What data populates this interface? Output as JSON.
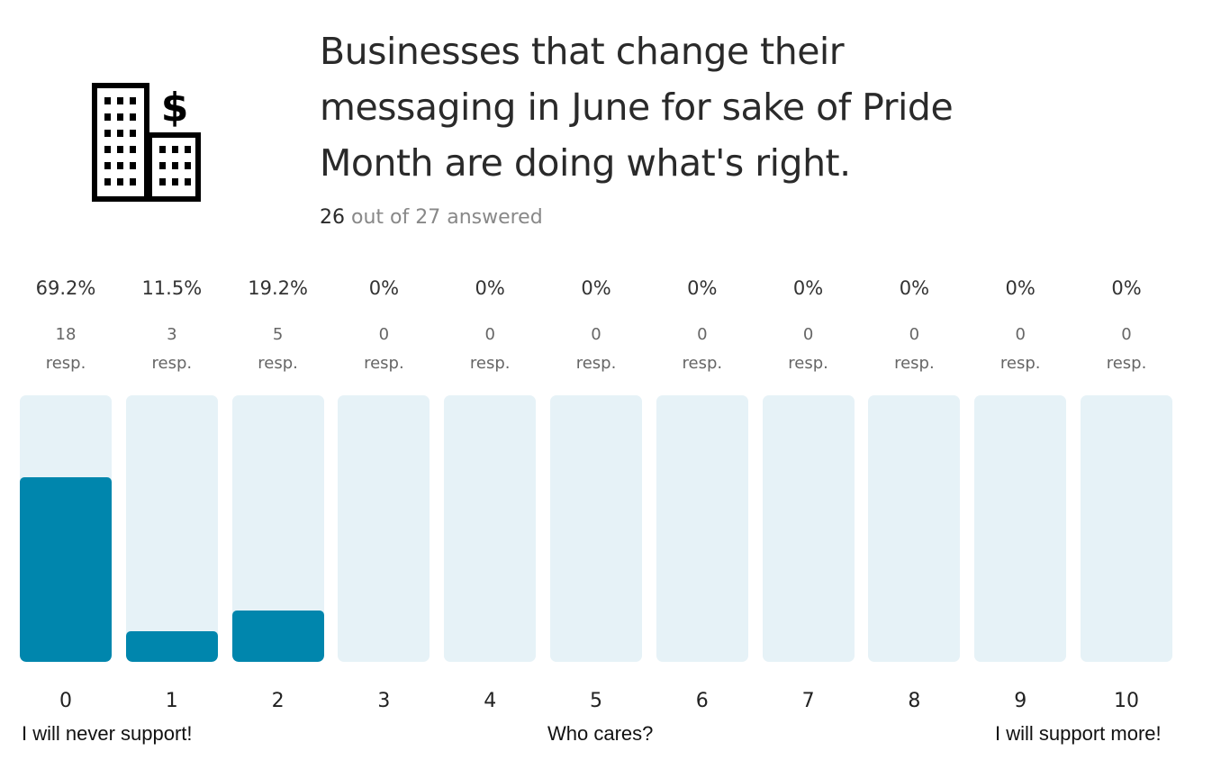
{
  "question": {
    "title": "Businesses that change their messaging in June for sake of Pride Month are doing what's right.",
    "answered_count": "26",
    "answered_suffix": "out of 27 answered",
    "icon": "office-building-dollar-icon"
  },
  "colors": {
    "fill": "#0086ad",
    "track": "#e6f2f7"
  },
  "chart_data": {
    "type": "bar",
    "categories": [
      "0",
      "1",
      "2",
      "3",
      "4",
      "5",
      "6",
      "7",
      "8",
      "9",
      "10"
    ],
    "values": [
      18,
      3,
      5,
      0,
      0,
      0,
      0,
      0,
      0,
      0,
      0
    ],
    "percentages": [
      "69.2%",
      "11.5%",
      "19.2%",
      "0%",
      "0%",
      "0%",
      "0%",
      "0%",
      "0%",
      "0%",
      "0%"
    ],
    "resp_label": "resp.",
    "ylim": [
      0,
      26
    ],
    "anchors": {
      "left": "I will never support!",
      "middle": "Who cares?",
      "right": "I will support more!"
    }
  }
}
